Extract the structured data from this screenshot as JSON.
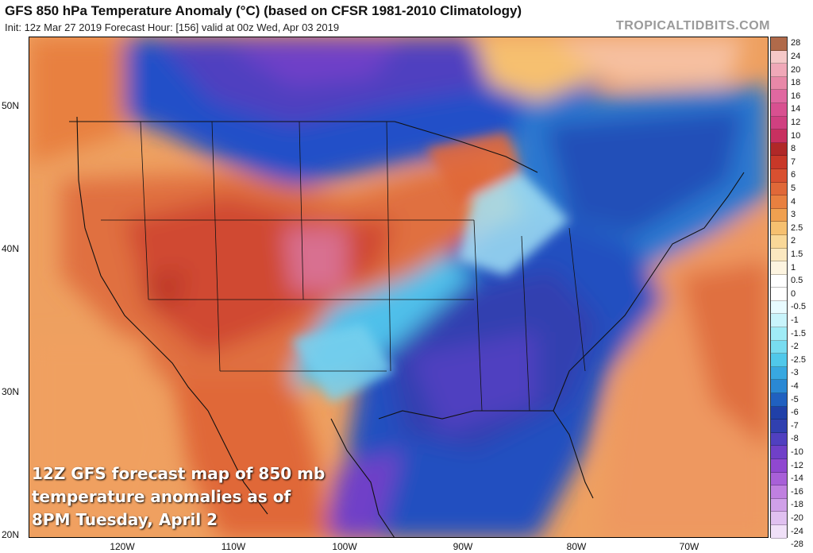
{
  "header": {
    "title": "GFS 850 hPa Temperature Anomaly (°C) (based on CFSR 1981-2010 Climatology)",
    "subtitle": "Init: 12z Mar 27 2019   Forecast Hour: [156]   valid at 00z Wed, Apr 03 2019",
    "brand": "TROPICALTIDBITS.COM"
  },
  "axes": {
    "lat_labels": [
      "50N",
      "40N",
      "30N",
      "20N"
    ],
    "lon_labels": [
      "120W",
      "110W",
      "100W",
      "90W",
      "80W",
      "70W"
    ]
  },
  "colorbar": {
    "labels": [
      "28",
      "24",
      "20",
      "18",
      "16",
      "14",
      "12",
      "10",
      "8",
      "7",
      "6",
      "5",
      "4",
      "3",
      "2.5",
      "2",
      "1.5",
      "1",
      "0.5",
      "0",
      "-0.5",
      "-1",
      "-1.5",
      "-2",
      "-2.5",
      "-3",
      "-4",
      "-5",
      "-6",
      "-7",
      "-8",
      "-10",
      "-12",
      "-14",
      "-16",
      "-18",
      "-20",
      "-24",
      "-28"
    ],
    "colors": [
      "#b06a4a",
      "#f5c8c8",
      "#f0a8b8",
      "#e888a8",
      "#e068a0",
      "#d85090",
      "#d04080",
      "#c83060",
      "#b02828",
      "#c83828",
      "#d85030",
      "#e06838",
      "#e88040",
      "#f0a050",
      "#f6c070",
      "#f9d898",
      "#fbe8c0",
      "#fdf4e0",
      "#ffffff",
      "#ffffff",
      "#e8fbff",
      "#c8f4fb",
      "#a0ecf6",
      "#78dcf0",
      "#50c8ea",
      "#38a8e0",
      "#2a88d4",
      "#2060c0",
      "#2040a8",
      "#3040b0",
      "#5040c0",
      "#7040c8",
      "#9048d0",
      "#a860d8",
      "#c080e0",
      "#d0a0e8",
      "#e0c0f0",
      "#f0e0f8"
    ]
  },
  "map": {
    "region": "North America",
    "land_anomaly_notes": "warm west / cold southeast"
  },
  "caption": {
    "line1": "12Z GFS forecast map of 850 mb",
    "line2": "temperature anomalies as of",
    "line3": "8PM Tuesday, April 2"
  }
}
